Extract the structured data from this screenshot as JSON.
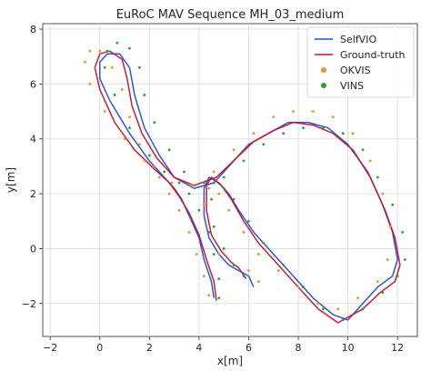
{
  "chart_data": {
    "type": "line",
    "title": "EuRoC MAV Sequence MH_03_medium",
    "xlabel": "x[m]",
    "ylabel": "y[m]",
    "xlim": [
      -2.3,
      12.8
    ],
    "ylim": [
      -3.2,
      8.2
    ],
    "xticks": [
      -2,
      0,
      2,
      4,
      6,
      8,
      10,
      12
    ],
    "yticks": [
      -2,
      0,
      2,
      4,
      6,
      8
    ],
    "xtick_labels": [
      "−2",
      "0",
      "2",
      "4",
      "6",
      "8",
      "10",
      "12"
    ],
    "ytick_labels": [
      "−2",
      "0",
      "2",
      "4",
      "6",
      "8"
    ],
    "grid": true,
    "legend_position": "top-right",
    "series": [
      {
        "name": "SelfVIO",
        "color": "#1f4fd6",
        "marker": "line",
        "x": [
          4.6,
          4.5,
          4.2,
          4.0,
          3.6,
          3.3,
          3.0,
          2.6,
          2.0,
          1.2,
          0.4,
          0.0,
          0.0,
          0.3,
          0.8,
          1.2,
          1.4,
          1.8,
          2.4,
          3.0,
          3.8,
          4.6,
          5.4,
          6.0,
          6.8,
          7.6,
          8.4,
          9.2,
          10.0,
          10.8,
          11.4,
          11.8,
          12.0,
          11.8,
          11.2,
          10.6,
          10.0,
          9.4,
          8.6,
          7.8,
          7.0,
          6.2,
          5.6,
          5.2,
          4.8,
          4.4,
          4.2,
          4.2,
          4.4,
          4.8,
          5.2,
          5.6,
          6.0,
          6.2
        ],
        "y": [
          -1.8,
          -1.2,
          -0.4,
          0.4,
          1.2,
          1.8,
          2.2,
          2.6,
          3.2,
          4.2,
          5.4,
          6.2,
          6.8,
          7.1,
          7.1,
          6.6,
          5.6,
          4.4,
          3.4,
          2.6,
          2.2,
          2.4,
          3.2,
          3.8,
          4.2,
          4.6,
          4.6,
          4.4,
          3.8,
          2.8,
          1.6,
          0.6,
          -0.4,
          -1.0,
          -1.4,
          -2.0,
          -2.6,
          -2.4,
          -1.8,
          -1.0,
          -0.2,
          0.6,
          1.4,
          2.0,
          2.4,
          2.6,
          2.2,
          1.2,
          0.4,
          -0.2,
          -0.6,
          -0.8,
          -1.0,
          -1.4
        ]
      },
      {
        "name": "Ground-truth",
        "color": "#c8102e",
        "marker": "line",
        "x": [
          4.7,
          4.6,
          4.3,
          4.0,
          3.6,
          3.2,
          2.8,
          2.2,
          1.4,
          0.6,
          0.0,
          -0.2,
          0.0,
          0.4,
          0.9,
          1.1,
          1.3,
          1.7,
          2.3,
          3.0,
          3.8,
          4.7,
          5.5,
          6.2,
          7.0,
          7.8,
          8.6,
          9.4,
          10.2,
          10.9,
          11.5,
          11.9,
          12.1,
          11.9,
          11.3,
          10.6,
          9.6,
          8.8,
          8.0,
          7.2,
          6.4,
          5.8,
          5.3,
          4.9,
          4.5,
          4.3,
          4.3,
          4.5,
          4.9,
          5.3,
          5.6,
          5.9
        ],
        "y": [
          -1.9,
          -1.2,
          -0.4,
          0.5,
          1.3,
          1.9,
          2.4,
          2.9,
          3.6,
          4.6,
          5.8,
          6.6,
          7.1,
          7.2,
          6.9,
          6.2,
          5.2,
          4.2,
          3.3,
          2.6,
          2.3,
          2.6,
          3.3,
          3.9,
          4.3,
          4.6,
          4.5,
          4.2,
          3.6,
          2.6,
          1.4,
          0.4,
          -0.6,
          -1.2,
          -1.6,
          -2.2,
          -2.7,
          -2.2,
          -1.4,
          -0.6,
          0.2,
          1.0,
          1.8,
          2.3,
          2.6,
          2.3,
          1.4,
          0.5,
          -0.1,
          -0.5,
          -0.7,
          -1.1
        ]
      },
      {
        "name": "OKVIS",
        "color": "#f28e2b",
        "marker": "dot",
        "x": [
          4.4,
          4.2,
          3.9,
          3.6,
          3.2,
          2.8,
          2.4,
          1.8,
          1.0,
          0.2,
          -0.4,
          -0.6,
          -0.4,
          0.0,
          0.5,
          0.9,
          1.2,
          1.6,
          2.2,
          2.9,
          3.7,
          4.6,
          5.4,
          6.2,
          7.0,
          7.8,
          8.6,
          9.4,
          10.2,
          10.9,
          11.4,
          11.7,
          11.6,
          11.2,
          10.4,
          9.6,
          8.8,
          8.0,
          7.2,
          6.4,
          5.8,
          5.2,
          4.8,
          4.4,
          4.2,
          4.4,
          4.8,
          5.4,
          6.0,
          6.4
        ],
        "y": [
          -1.7,
          -1.0,
          -0.2,
          0.6,
          1.4,
          2.0,
          2.6,
          3.2,
          4.0,
          5.0,
          6.0,
          6.8,
          7.2,
          7.2,
          6.6,
          5.8,
          4.8,
          3.8,
          3.0,
          2.4,
          2.3,
          2.8,
          3.6,
          4.2,
          4.8,
          5.0,
          5.0,
          4.8,
          4.2,
          3.2,
          2.0,
          0.8,
          -0.4,
          -1.2,
          -1.8,
          -2.2,
          -2.0,
          -1.4,
          -0.8,
          -0.2,
          0.6,
          1.4,
          2.0,
          2.2,
          1.6,
          0.6,
          -0.2,
          -0.6,
          -0.8,
          -1.2
        ]
      },
      {
        "name": "VINS",
        "color": "#2ca02c",
        "marker": "dot",
        "x": [
          4.8,
          4.8,
          4.6,
          4.4,
          4.0,
          3.6,
          3.2,
          2.6,
          2.0,
          1.2,
          0.6,
          0.2,
          0.3,
          0.7,
          1.2,
          1.6,
          1.8,
          2.2,
          2.8,
          3.4,
          4.2,
          5.0,
          5.8,
          6.6,
          7.4,
          8.2,
          9.0,
          9.8,
          10.6,
          11.2,
          11.8,
          12.2,
          12.3,
          12.0,
          11.4,
          10.6,
          9.8,
          9.0,
          8.2,
          7.4,
          6.6,
          6.0,
          5.4,
          5.0,
          4.6,
          4.5,
          4.6,
          5.0,
          5.4,
          5.8
        ],
        "y": [
          -1.8,
          -1.1,
          -0.2,
          0.6,
          1.4,
          2.0,
          2.4,
          2.8,
          3.4,
          4.4,
          5.6,
          6.6,
          7.2,
          7.5,
          7.3,
          6.6,
          5.6,
          4.6,
          3.6,
          2.8,
          2.4,
          2.6,
          3.2,
          3.8,
          4.2,
          4.4,
          4.4,
          4.2,
          3.6,
          2.6,
          1.6,
          0.6,
          -0.4,
          -1.0,
          -1.6,
          -2.2,
          -2.6,
          -2.2,
          -1.4,
          -0.6,
          0.2,
          1.0,
          1.8,
          2.2,
          2.4,
          1.8,
          0.8,
          0.0,
          -0.6,
          -1.0
        ]
      }
    ]
  }
}
